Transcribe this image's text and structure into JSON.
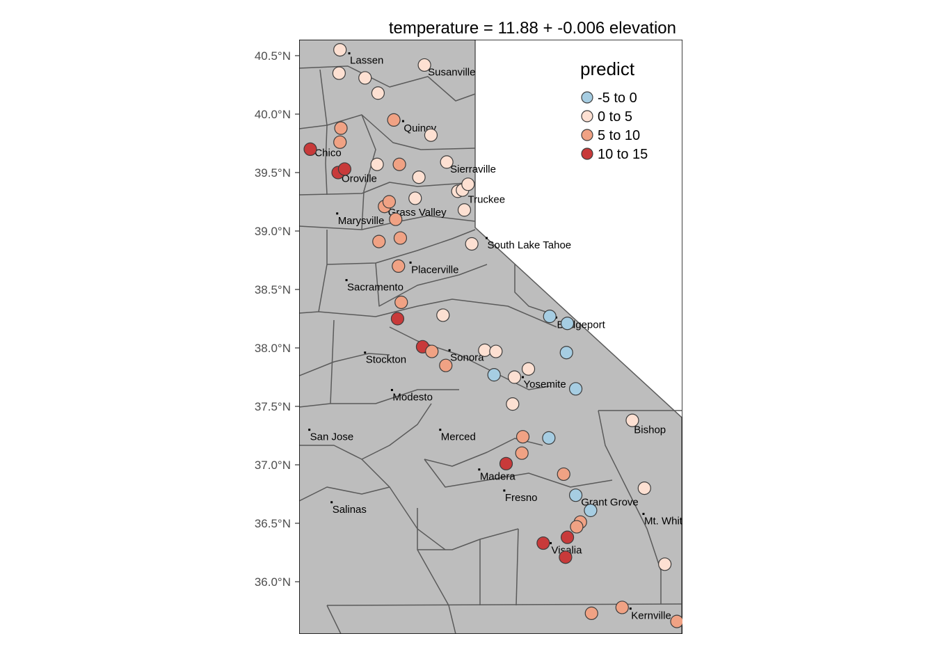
{
  "title": "temperature = 11.88 + -0.006 elevation",
  "legend": {
    "title": "predict",
    "classes": [
      {
        "label": "-5 to 0",
        "color": "#a6cde2"
      },
      {
        "label": "0 to 5",
        "color": "#fde0d2"
      },
      {
        "label": "5 to 10",
        "color": "#f0a284"
      },
      {
        "label": "10 to 15",
        "color": "#c83a3a"
      }
    ]
  },
  "colors": {
    "land": "#bdbdbd",
    "border": "#5a5a5a",
    "point_stroke": "#3c3c3c"
  },
  "y_axis": {
    "ticks": [
      {
        "lat": 40.5,
        "label": "40.5°N"
      },
      {
        "lat": 40.0,
        "label": "40.0°N"
      },
      {
        "lat": 39.5,
        "label": "39.5°N"
      },
      {
        "lat": 39.0,
        "label": "39.0°N"
      },
      {
        "lat": 38.5,
        "label": "38.5°N"
      },
      {
        "lat": 38.0,
        "label": "38.0°N"
      },
      {
        "lat": 37.5,
        "label": "37.5°N"
      },
      {
        "lat": 37.0,
        "label": "37.0°N"
      },
      {
        "lat": 36.5,
        "label": "36.5°N"
      },
      {
        "lat": 36.0,
        "label": "36.0°N"
      }
    ]
  },
  "cities": [
    {
      "name": "Lassen",
      "lon": -121.46,
      "lat": 40.52
    },
    {
      "name": "Susanville",
      "lon": -120.62,
      "lat": 40.42
    },
    {
      "name": "Quincy",
      "lon": -120.88,
      "lat": 39.94
    },
    {
      "name": "Chico",
      "lon": -121.84,
      "lat": 39.73
    },
    {
      "name": "Oroville",
      "lon": -121.55,
      "lat": 39.51
    },
    {
      "name": "Sierraville",
      "lon": -120.38,
      "lat": 39.59
    },
    {
      "name": "Truckee",
      "lon": -120.19,
      "lat": 39.33
    },
    {
      "name": "Grass Valley",
      "lon": -121.05,
      "lat": 39.22
    },
    {
      "name": "Marysville",
      "lon": -121.59,
      "lat": 39.15
    },
    {
      "name": "South Lake Tahoe",
      "lon": -119.98,
      "lat": 38.94
    },
    {
      "name": "Placerville",
      "lon": -120.8,
      "lat": 38.73
    },
    {
      "name": "Sacramento",
      "lon": -121.49,
      "lat": 38.58
    },
    {
      "name": "Bridgeport",
      "lon": -119.23,
      "lat": 38.26
    },
    {
      "name": "Stockton",
      "lon": -121.29,
      "lat": 37.96
    },
    {
      "name": "Sonora",
      "lon": -120.38,
      "lat": 37.98
    },
    {
      "name": "Yosemite",
      "lon": -119.59,
      "lat": 37.75
    },
    {
      "name": "Modesto",
      "lon": -121.0,
      "lat": 37.64
    },
    {
      "name": "Bishop",
      "lon": -118.4,
      "lat": 37.36
    },
    {
      "name": "San Jose",
      "lon": -121.89,
      "lat": 37.3
    },
    {
      "name": "Merced",
      "lon": -120.48,
      "lat": 37.3
    },
    {
      "name": "Madera",
      "lon": -120.06,
      "lat": 36.96
    },
    {
      "name": "Fresno",
      "lon": -119.79,
      "lat": 36.78
    },
    {
      "name": "Grant Grove",
      "lon": -118.97,
      "lat": 36.74
    },
    {
      "name": "Salinas",
      "lon": -121.65,
      "lat": 36.68
    },
    {
      "name": "Mt. Whitney",
      "lon": -118.29,
      "lat": 36.58
    },
    {
      "name": "Visalia",
      "lon": -119.29,
      "lat": 36.33
    },
    {
      "name": "Kernville",
      "lon": -118.43,
      "lat": 35.77
    }
  ],
  "stations": [
    {
      "lon": -121.56,
      "lat": 40.55,
      "cls": 1
    },
    {
      "lon": -121.57,
      "lat": 40.35,
      "cls": 1
    },
    {
      "lon": -121.29,
      "lat": 40.31,
      "cls": 1
    },
    {
      "lon": -120.65,
      "lat": 40.42,
      "cls": 1
    },
    {
      "lon": -121.15,
      "lat": 40.18,
      "cls": 1
    },
    {
      "lon": -121.55,
      "lat": 39.88,
      "cls": 2
    },
    {
      "lon": -120.98,
      "lat": 39.95,
      "cls": 2
    },
    {
      "lon": -120.58,
      "lat": 39.82,
      "cls": 1
    },
    {
      "lon": -121.56,
      "lat": 39.76,
      "cls": 2
    },
    {
      "lon": -121.88,
      "lat": 39.7,
      "cls": 3
    },
    {
      "lon": -121.58,
      "lat": 39.5,
      "cls": 3
    },
    {
      "lon": -121.51,
      "lat": 39.53,
      "cls": 3
    },
    {
      "lon": -121.16,
      "lat": 39.57,
      "cls": 1
    },
    {
      "lon": -120.92,
      "lat": 39.57,
      "cls": 2
    },
    {
      "lon": -120.71,
      "lat": 39.46,
      "cls": 1
    },
    {
      "lon": -120.41,
      "lat": 39.59,
      "cls": 1
    },
    {
      "lon": -120.29,
      "lat": 39.34,
      "cls": 1
    },
    {
      "lon": -120.24,
      "lat": 39.35,
      "cls": 1
    },
    {
      "lon": -120.18,
      "lat": 39.4,
      "cls": 1
    },
    {
      "lon": -120.75,
      "lat": 39.28,
      "cls": 1
    },
    {
      "lon": -121.08,
      "lat": 39.21,
      "cls": 2
    },
    {
      "lon": -121.03,
      "lat": 39.25,
      "cls": 2
    },
    {
      "lon": -120.22,
      "lat": 39.18,
      "cls": 1
    },
    {
      "lon": -120.96,
      "lat": 39.1,
      "cls": 2
    },
    {
      "lon": -121.14,
      "lat": 38.91,
      "cls": 2
    },
    {
      "lon": -120.91,
      "lat": 38.94,
      "cls": 2
    },
    {
      "lon": -120.14,
      "lat": 38.89,
      "cls": 1
    },
    {
      "lon": -120.93,
      "lat": 38.7,
      "cls": 2
    },
    {
      "lon": -120.9,
      "lat": 38.39,
      "cls": 2
    },
    {
      "lon": -120.94,
      "lat": 38.25,
      "cls": 3
    },
    {
      "lon": -120.45,
      "lat": 38.28,
      "cls": 1
    },
    {
      "lon": -120.67,
      "lat": 38.01,
      "cls": 3
    },
    {
      "lon": -120.57,
      "lat": 37.97,
      "cls": 2
    },
    {
      "lon": -120.42,
      "lat": 37.85,
      "cls": 2
    },
    {
      "lon": -120.0,
      "lat": 37.98,
      "cls": 1
    },
    {
      "lon": -119.88,
      "lat": 37.97,
      "cls": 1
    },
    {
      "lon": -119.9,
      "lat": 37.77,
      "cls": 0
    },
    {
      "lon": -119.68,
      "lat": 37.75,
      "cls": 1
    },
    {
      "lon": -119.53,
      "lat": 37.82,
      "cls": 1
    },
    {
      "lon": -119.7,
      "lat": 37.52,
      "cls": 1
    },
    {
      "lon": -119.3,
      "lat": 38.27,
      "cls": 0
    },
    {
      "lon": -119.11,
      "lat": 38.21,
      "cls": 0
    },
    {
      "lon": -119.12,
      "lat": 37.96,
      "cls": 0
    },
    {
      "lon": -119.02,
      "lat": 37.65,
      "cls": 0
    },
    {
      "lon": -119.59,
      "lat": 37.24,
      "cls": 2
    },
    {
      "lon": -119.31,
      "lat": 37.23,
      "cls": 0
    },
    {
      "lon": -119.6,
      "lat": 37.1,
      "cls": 2
    },
    {
      "lon": -119.77,
      "lat": 37.01,
      "cls": 3
    },
    {
      "lon": -119.15,
      "lat": 36.92,
      "cls": 2
    },
    {
      "lon": -119.02,
      "lat": 36.74,
      "cls": 0
    },
    {
      "lon": -118.86,
      "lat": 36.61,
      "cls": 0
    },
    {
      "lon": -118.97,
      "lat": 36.51,
      "cls": 2
    },
    {
      "lon": -119.01,
      "lat": 36.47,
      "cls": 2
    },
    {
      "lon": -119.11,
      "lat": 36.38,
      "cls": 3
    },
    {
      "lon": -119.37,
      "lat": 36.33,
      "cls": 3
    },
    {
      "lon": -119.13,
      "lat": 36.21,
      "cls": 3
    },
    {
      "lon": -118.41,
      "lat": 37.38,
      "cls": 1
    },
    {
      "lon": -118.28,
      "lat": 36.8,
      "cls": 1
    },
    {
      "lon": -118.06,
      "lat": 36.15,
      "cls": 1
    },
    {
      "lon": -118.85,
      "lat": 35.73,
      "cls": 2
    },
    {
      "lon": -118.52,
      "lat": 35.78,
      "cls": 2
    },
    {
      "lon": -117.93,
      "lat": 35.66,
      "cls": 2
    }
  ]
}
